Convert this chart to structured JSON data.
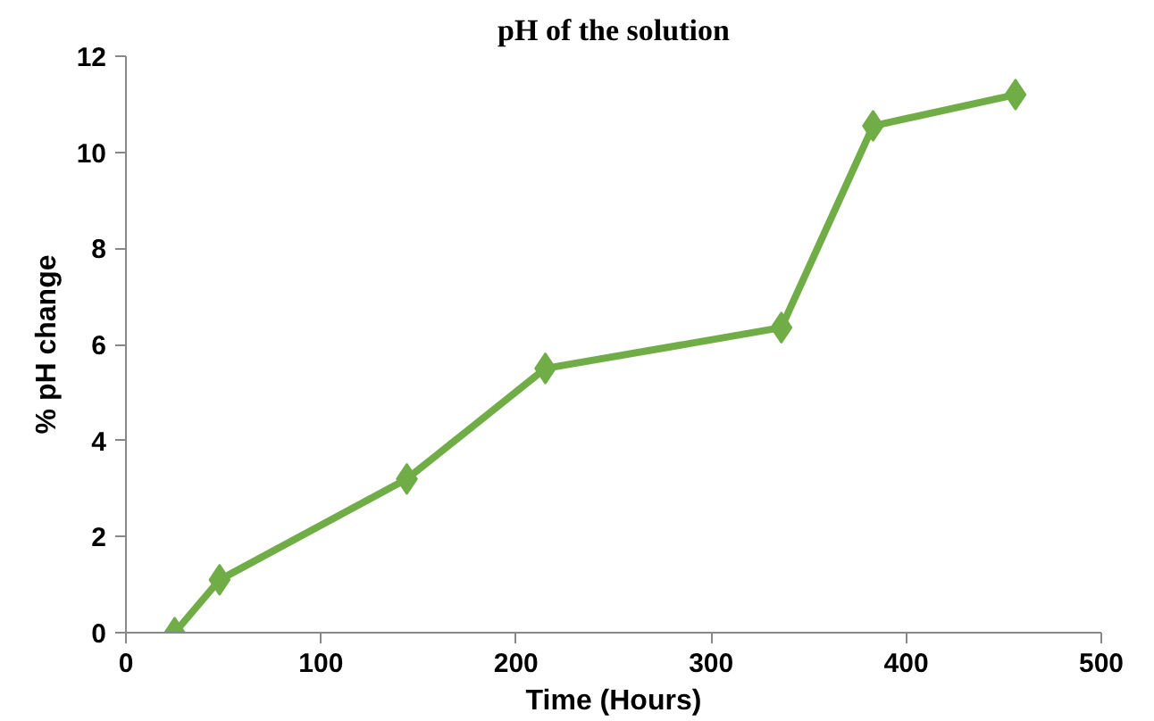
{
  "chart_data": {
    "type": "line",
    "title": "pH of the solution",
    "xlabel": "Time (Hours)",
    "ylabel": "% pH change",
    "x": [
      25,
      48,
      144,
      215,
      336,
      383,
      456
    ],
    "series": [
      {
        "color": "#70ad47",
        "values": [
          0,
          1.1,
          3.2,
          5.5,
          6.35,
          10.55,
          11.2
        ]
      }
    ],
    "xlim": [
      0,
      500
    ],
    "xticks": [
      0,
      100,
      200,
      300,
      400,
      500
    ],
    "ylim": [
      0,
      12
    ],
    "yticks": [
      0,
      2,
      4,
      6,
      8,
      10,
      12
    ],
    "grid": false,
    "marker": "diamond",
    "line_style": "solid"
  }
}
